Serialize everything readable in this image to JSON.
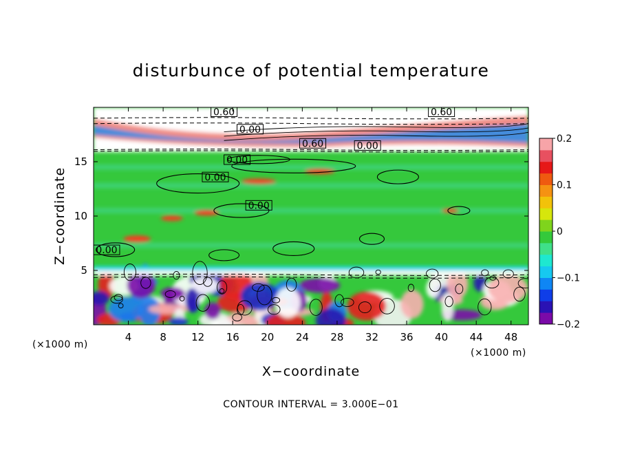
{
  "chart_data": {
    "type": "heatmap",
    "title": "disturbunce of potential temperature",
    "xlabel": "X−coordinate",
    "ylabel": "Z−coordinate",
    "x_unit": "(×1000 m)",
    "y_unit": "(×1000 m)",
    "xlim": [
      0,
      50
    ],
    "ylim": [
      0,
      20
    ],
    "x_ticks": [
      4,
      8,
      12,
      16,
      20,
      24,
      28,
      32,
      36,
      40,
      44,
      48
    ],
    "y_ticks": [
      5,
      10,
      15
    ],
    "colorbar": {
      "range": [
        -0.2,
        0.2
      ],
      "ticks": [
        {
          "value": 0.2,
          "label": "0.2"
        },
        {
          "value": 0.1,
          "label": "0.1"
        },
        {
          "value": 0,
          "label": "0"
        },
        {
          "value": -0.1,
          "label": "−0.1"
        },
        {
          "value": -0.2,
          "label": "−0.2"
        }
      ],
      "colors": [
        "#7a0aa8",
        "#2a12b4",
        "#0f3ee8",
        "#0f86f4",
        "#16c8f0",
        "#1ee8d0",
        "#3fe08a",
        "#34c93b",
        "#7fd41c",
        "#d6e60c",
        "#f2c20a",
        "#f59212",
        "#ef5a10",
        "#e61818",
        "#e85060",
        "#f7a4a8"
      ]
    },
    "contour_interval_text": "CONTOUR INTERVAL = 3.000E−01",
    "contour_labels": [
      {
        "x": 15.0,
        "z": 19.4,
        "text": "0.60"
      },
      {
        "x": 40.0,
        "z": 19.4,
        "text": "0.60"
      },
      {
        "x": 18.0,
        "z": 17.8,
        "text": "0.00"
      },
      {
        "x": 25.2,
        "z": 16.5,
        "text": "0.60"
      },
      {
        "x": 31.5,
        "z": 16.3,
        "text": "0.00"
      },
      {
        "x": 16.5,
        "z": 15.0,
        "text": "0.00"
      },
      {
        "x": 14.0,
        "z": 13.4,
        "text": "0.00"
      },
      {
        "x": 19.0,
        "z": 10.8,
        "text": "0.00"
      },
      {
        "x": 1.5,
        "z": 6.7,
        "text": "0.00"
      }
    ]
  }
}
